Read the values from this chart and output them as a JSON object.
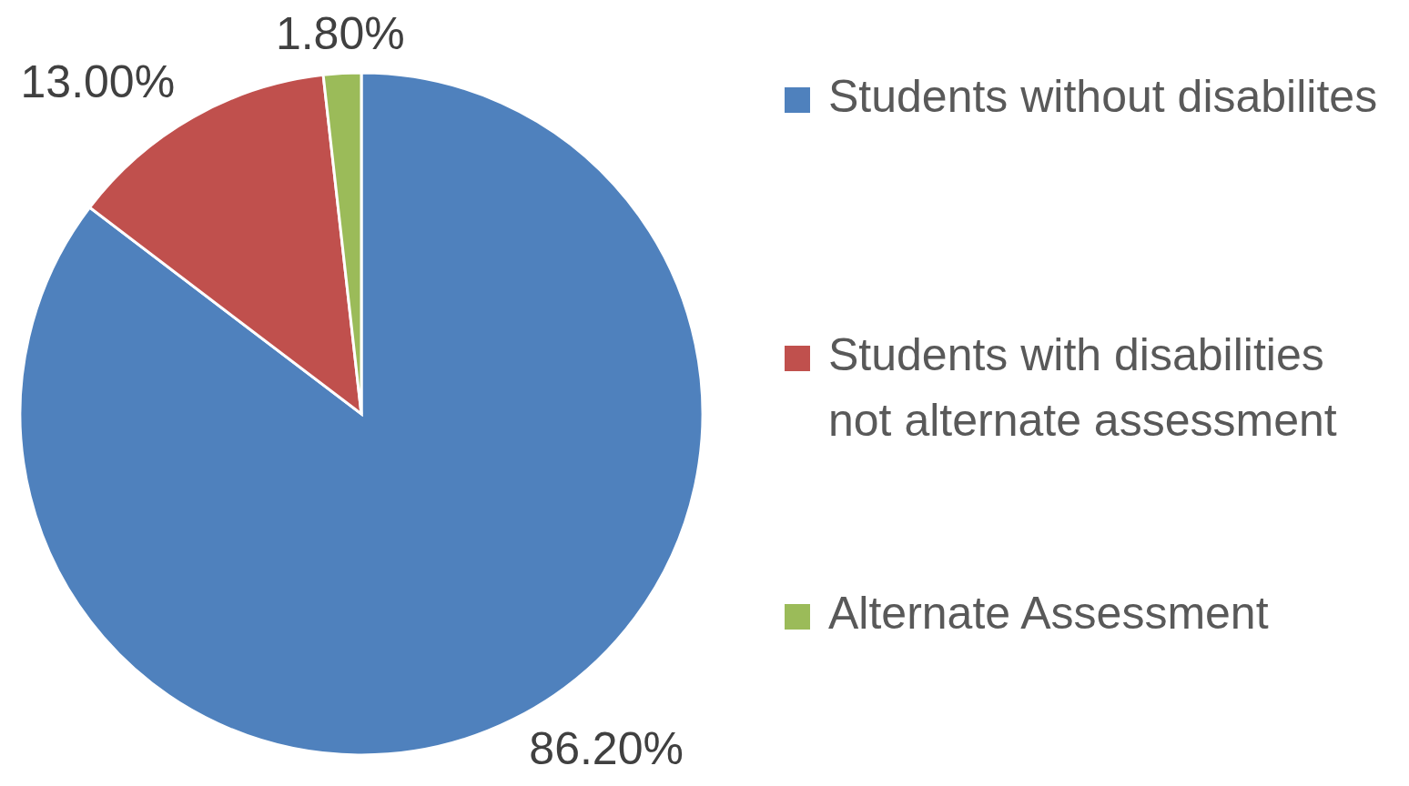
{
  "chart_data": {
    "type": "pie",
    "categories": [
      "Students without disabilites",
      "Students with disabilities not alternate assessment",
      "Alternate Assessment"
    ],
    "values": [
      86.2,
      13.0,
      1.8
    ],
    "value_labels": [
      "86.20%",
      "13.00%",
      "1.80%"
    ],
    "colors": [
      "#4f81bd",
      "#c0504d",
      "#9bbb59"
    ],
    "legend": "right"
  }
}
